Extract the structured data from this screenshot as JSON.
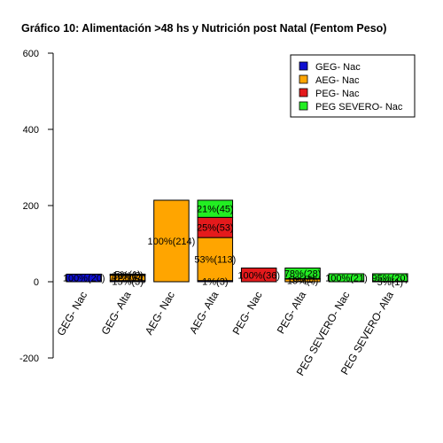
{
  "chart_data": {
    "type": "bar",
    "stacked": true,
    "title": "Gráfico 10: Alimentación >48 hs y Nutrición post Natal (Fentom Peso)",
    "xlabel": "",
    "ylabel": "",
    "ylim": [
      -200,
      600
    ],
    "yticks": [
      -200,
      0,
      200,
      400,
      600
    ],
    "grid": false,
    "legend_position": "top-right",
    "categories": [
      "GEG- Nac",
      "GEG- Alta",
      "AEG- Nac",
      "AEG- Alta",
      "PEG- Nac",
      "PEG- Alta",
      "PEG SEVERO- Nac",
      "PEG SEVERO- Alta"
    ],
    "legend": [
      {
        "name": "GEG- Nac",
        "color": "#1010d0"
      },
      {
        "name": "AEG- Nac",
        "color": "#ffa500"
      },
      {
        "name": "PEG- Nac",
        "color": "#e41a1c"
      },
      {
        "name": "PEG SEVERO- Nac",
        "color": "#22ee22"
      }
    ],
    "bars": [
      {
        "category": "GEG- Nac",
        "segments": [
          {
            "value": 20,
            "color": "#1010d0",
            "label": "100%(20)"
          }
        ]
      },
      {
        "category": "GEG- Alta",
        "segments": [
          {
            "value": 3,
            "color": "#1010d0",
            "label": "15%(3)"
          },
          {
            "value": 14,
            "color": "#ffa500",
            "label": "70%(14)"
          },
          {
            "value": 2,
            "color": "#e41a1c",
            "label": "10%(2)"
          },
          {
            "value": 1,
            "color": "#22ee22",
            "label": "5%(1)"
          }
        ]
      },
      {
        "category": "AEG- Nac",
        "segments": [
          {
            "value": 214,
            "color": "#ffa500",
            "label": "100%(214)"
          }
        ]
      },
      {
        "category": "AEG- Alta",
        "segments": [
          {
            "value": 3,
            "color": "#1010d0",
            "label": "1%(3)"
          },
          {
            "value": 113,
            "color": "#ffa500",
            "label": "53%(113)"
          },
          {
            "value": 53,
            "color": "#e41a1c",
            "label": "25%(53)"
          },
          {
            "value": 45,
            "color": "#22ee22",
            "label": "21%(45)"
          }
        ]
      },
      {
        "category": "PEG- Nac",
        "segments": [
          {
            "value": 36,
            "color": "#e41a1c",
            "label": "100%(36)"
          }
        ]
      },
      {
        "category": "PEG- Alta",
        "segments": [
          {
            "value": 7,
            "color": "#ffa500",
            "label": "19%(7)"
          },
          {
            "value": 1,
            "color": "#e41a1c",
            "label": "3%(1)"
          },
          {
            "value": 28,
            "color": "#22ee22",
            "label": "78%(28)"
          }
        ]
      },
      {
        "category": "PEG SEVERO- Nac",
        "segments": [
          {
            "value": 21,
            "color": "#22ee22",
            "label": "100%(21)"
          }
        ]
      },
      {
        "category": "PEG SEVERO- Alta",
        "segments": [
          {
            "value": 1,
            "color": "#e41a1c",
            "label": "5%(1)"
          },
          {
            "value": 20,
            "color": "#22ee22",
            "label": "95%(20)"
          }
        ]
      }
    ]
  }
}
